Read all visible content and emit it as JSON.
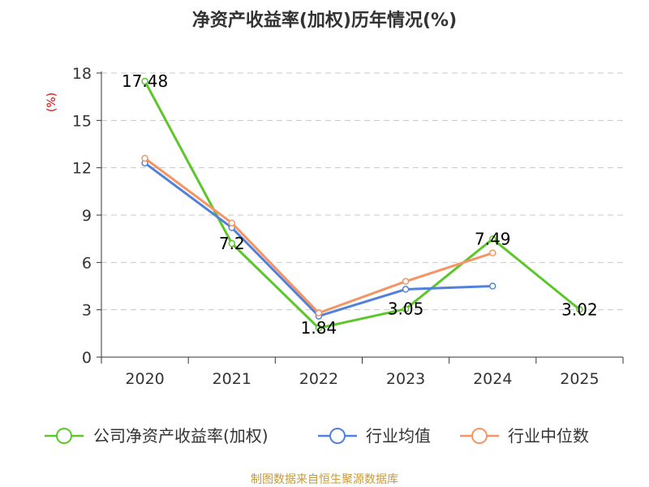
{
  "chart_data": {
    "type": "line",
    "title": "净资产收益率(加权)历年情况(%)",
    "ylabel": "(%)",
    "xlabel": "",
    "categories": [
      "2020",
      "2021",
      "2022",
      "2023",
      "2024",
      "2025"
    ],
    "yticks": [
      0,
      3,
      6,
      9,
      12,
      15,
      18
    ],
    "ylim": [
      0,
      18
    ],
    "grid": true,
    "legend_position": "bottom",
    "series": [
      {
        "name": "公司净资产收益率(加权)",
        "color": "#5cc72a",
        "values": [
          17.48,
          7.2,
          1.84,
          3.05,
          7.49,
          3.02
        ],
        "labels": [
          "17.48",
          "7.2",
          "1.84",
          "3.05",
          "7.49",
          "3.02"
        ]
      },
      {
        "name": "行业均值",
        "color": "#5281dc",
        "values": [
          12.3,
          8.2,
          2.6,
          4.3,
          4.5,
          null
        ]
      },
      {
        "name": "行业中位数",
        "color": "#f59566",
        "values": [
          12.6,
          8.5,
          2.8,
          4.8,
          6.6,
          null
        ]
      }
    ],
    "source": "制图数据来自恒生聚源数据库"
  }
}
